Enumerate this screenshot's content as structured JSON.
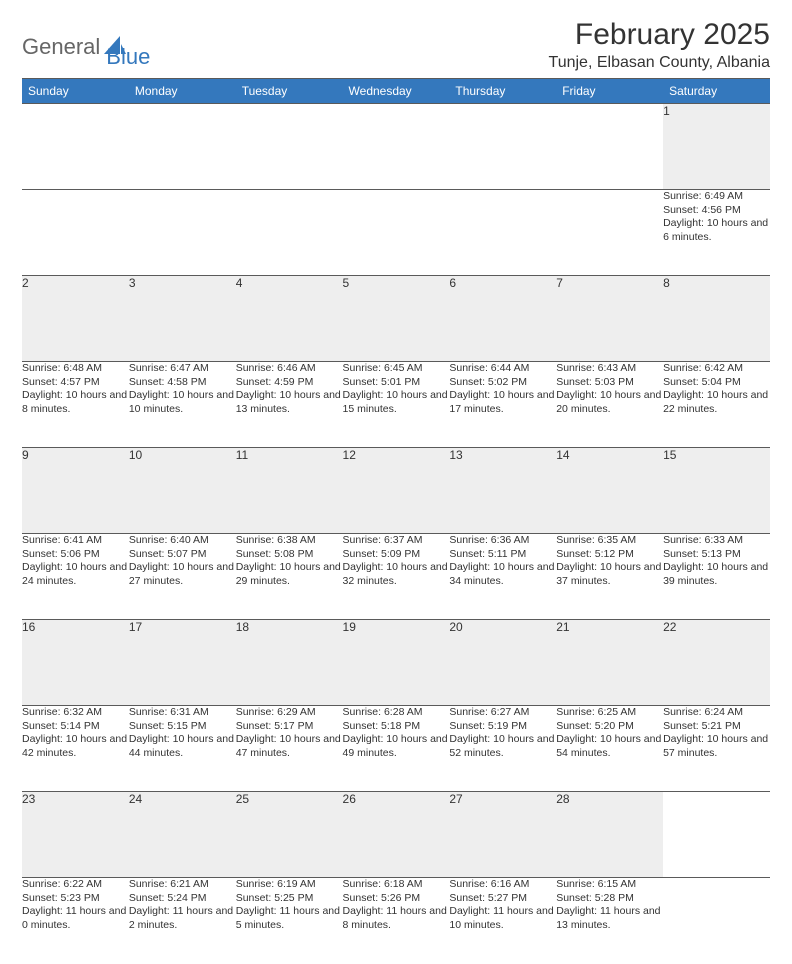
{
  "logo": {
    "text1": "General",
    "text2": "Blue"
  },
  "header": {
    "title": "February 2025",
    "location": "Tunje, Elbasan County, Albania"
  },
  "colors": {
    "header_bg": "#3478bd",
    "header_fg": "#ffffff",
    "daynum_bg": "#eeeeee",
    "rule": "#5a5a5a",
    "text": "#333333",
    "logo_gray": "#666666",
    "logo_blue": "#3478bd"
  },
  "weekdays": [
    "Sunday",
    "Monday",
    "Tuesday",
    "Wednesday",
    "Thursday",
    "Friday",
    "Saturday"
  ],
  "weeks": [
    [
      null,
      null,
      null,
      null,
      null,
      null,
      {
        "n": "1",
        "sunrise": "Sunrise: 6:49 AM",
        "sunset": "Sunset: 4:56 PM",
        "daylight": "Daylight: 10 hours and 6 minutes."
      }
    ],
    [
      {
        "n": "2",
        "sunrise": "Sunrise: 6:48 AM",
        "sunset": "Sunset: 4:57 PM",
        "daylight": "Daylight: 10 hours and 8 minutes."
      },
      {
        "n": "3",
        "sunrise": "Sunrise: 6:47 AM",
        "sunset": "Sunset: 4:58 PM",
        "daylight": "Daylight: 10 hours and 10 minutes."
      },
      {
        "n": "4",
        "sunrise": "Sunrise: 6:46 AM",
        "sunset": "Sunset: 4:59 PM",
        "daylight": "Daylight: 10 hours and 13 minutes."
      },
      {
        "n": "5",
        "sunrise": "Sunrise: 6:45 AM",
        "sunset": "Sunset: 5:01 PM",
        "daylight": "Daylight: 10 hours and 15 minutes."
      },
      {
        "n": "6",
        "sunrise": "Sunrise: 6:44 AM",
        "sunset": "Sunset: 5:02 PM",
        "daylight": "Daylight: 10 hours and 17 minutes."
      },
      {
        "n": "7",
        "sunrise": "Sunrise: 6:43 AM",
        "sunset": "Sunset: 5:03 PM",
        "daylight": "Daylight: 10 hours and 20 minutes."
      },
      {
        "n": "8",
        "sunrise": "Sunrise: 6:42 AM",
        "sunset": "Sunset: 5:04 PM",
        "daylight": "Daylight: 10 hours and 22 minutes."
      }
    ],
    [
      {
        "n": "9",
        "sunrise": "Sunrise: 6:41 AM",
        "sunset": "Sunset: 5:06 PM",
        "daylight": "Daylight: 10 hours and 24 minutes."
      },
      {
        "n": "10",
        "sunrise": "Sunrise: 6:40 AM",
        "sunset": "Sunset: 5:07 PM",
        "daylight": "Daylight: 10 hours and 27 minutes."
      },
      {
        "n": "11",
        "sunrise": "Sunrise: 6:38 AM",
        "sunset": "Sunset: 5:08 PM",
        "daylight": "Daylight: 10 hours and 29 minutes."
      },
      {
        "n": "12",
        "sunrise": "Sunrise: 6:37 AM",
        "sunset": "Sunset: 5:09 PM",
        "daylight": "Daylight: 10 hours and 32 minutes."
      },
      {
        "n": "13",
        "sunrise": "Sunrise: 6:36 AM",
        "sunset": "Sunset: 5:11 PM",
        "daylight": "Daylight: 10 hours and 34 minutes."
      },
      {
        "n": "14",
        "sunrise": "Sunrise: 6:35 AM",
        "sunset": "Sunset: 5:12 PM",
        "daylight": "Daylight: 10 hours and 37 minutes."
      },
      {
        "n": "15",
        "sunrise": "Sunrise: 6:33 AM",
        "sunset": "Sunset: 5:13 PM",
        "daylight": "Daylight: 10 hours and 39 minutes."
      }
    ],
    [
      {
        "n": "16",
        "sunrise": "Sunrise: 6:32 AM",
        "sunset": "Sunset: 5:14 PM",
        "daylight": "Daylight: 10 hours and 42 minutes."
      },
      {
        "n": "17",
        "sunrise": "Sunrise: 6:31 AM",
        "sunset": "Sunset: 5:15 PM",
        "daylight": "Daylight: 10 hours and 44 minutes."
      },
      {
        "n": "18",
        "sunrise": "Sunrise: 6:29 AM",
        "sunset": "Sunset: 5:17 PM",
        "daylight": "Daylight: 10 hours and 47 minutes."
      },
      {
        "n": "19",
        "sunrise": "Sunrise: 6:28 AM",
        "sunset": "Sunset: 5:18 PM",
        "daylight": "Daylight: 10 hours and 49 minutes."
      },
      {
        "n": "20",
        "sunrise": "Sunrise: 6:27 AM",
        "sunset": "Sunset: 5:19 PM",
        "daylight": "Daylight: 10 hours and 52 minutes."
      },
      {
        "n": "21",
        "sunrise": "Sunrise: 6:25 AM",
        "sunset": "Sunset: 5:20 PM",
        "daylight": "Daylight: 10 hours and 54 minutes."
      },
      {
        "n": "22",
        "sunrise": "Sunrise: 6:24 AM",
        "sunset": "Sunset: 5:21 PM",
        "daylight": "Daylight: 10 hours and 57 minutes."
      }
    ],
    [
      {
        "n": "23",
        "sunrise": "Sunrise: 6:22 AM",
        "sunset": "Sunset: 5:23 PM",
        "daylight": "Daylight: 11 hours and 0 minutes."
      },
      {
        "n": "24",
        "sunrise": "Sunrise: 6:21 AM",
        "sunset": "Sunset: 5:24 PM",
        "daylight": "Daylight: 11 hours and 2 minutes."
      },
      {
        "n": "25",
        "sunrise": "Sunrise: 6:19 AM",
        "sunset": "Sunset: 5:25 PM",
        "daylight": "Daylight: 11 hours and 5 minutes."
      },
      {
        "n": "26",
        "sunrise": "Sunrise: 6:18 AM",
        "sunset": "Sunset: 5:26 PM",
        "daylight": "Daylight: 11 hours and 8 minutes."
      },
      {
        "n": "27",
        "sunrise": "Sunrise: 6:16 AM",
        "sunset": "Sunset: 5:27 PM",
        "daylight": "Daylight: 11 hours and 10 minutes."
      },
      {
        "n": "28",
        "sunrise": "Sunrise: 6:15 AM",
        "sunset": "Sunset: 5:28 PM",
        "daylight": "Daylight: 11 hours and 13 minutes."
      },
      null
    ]
  ]
}
